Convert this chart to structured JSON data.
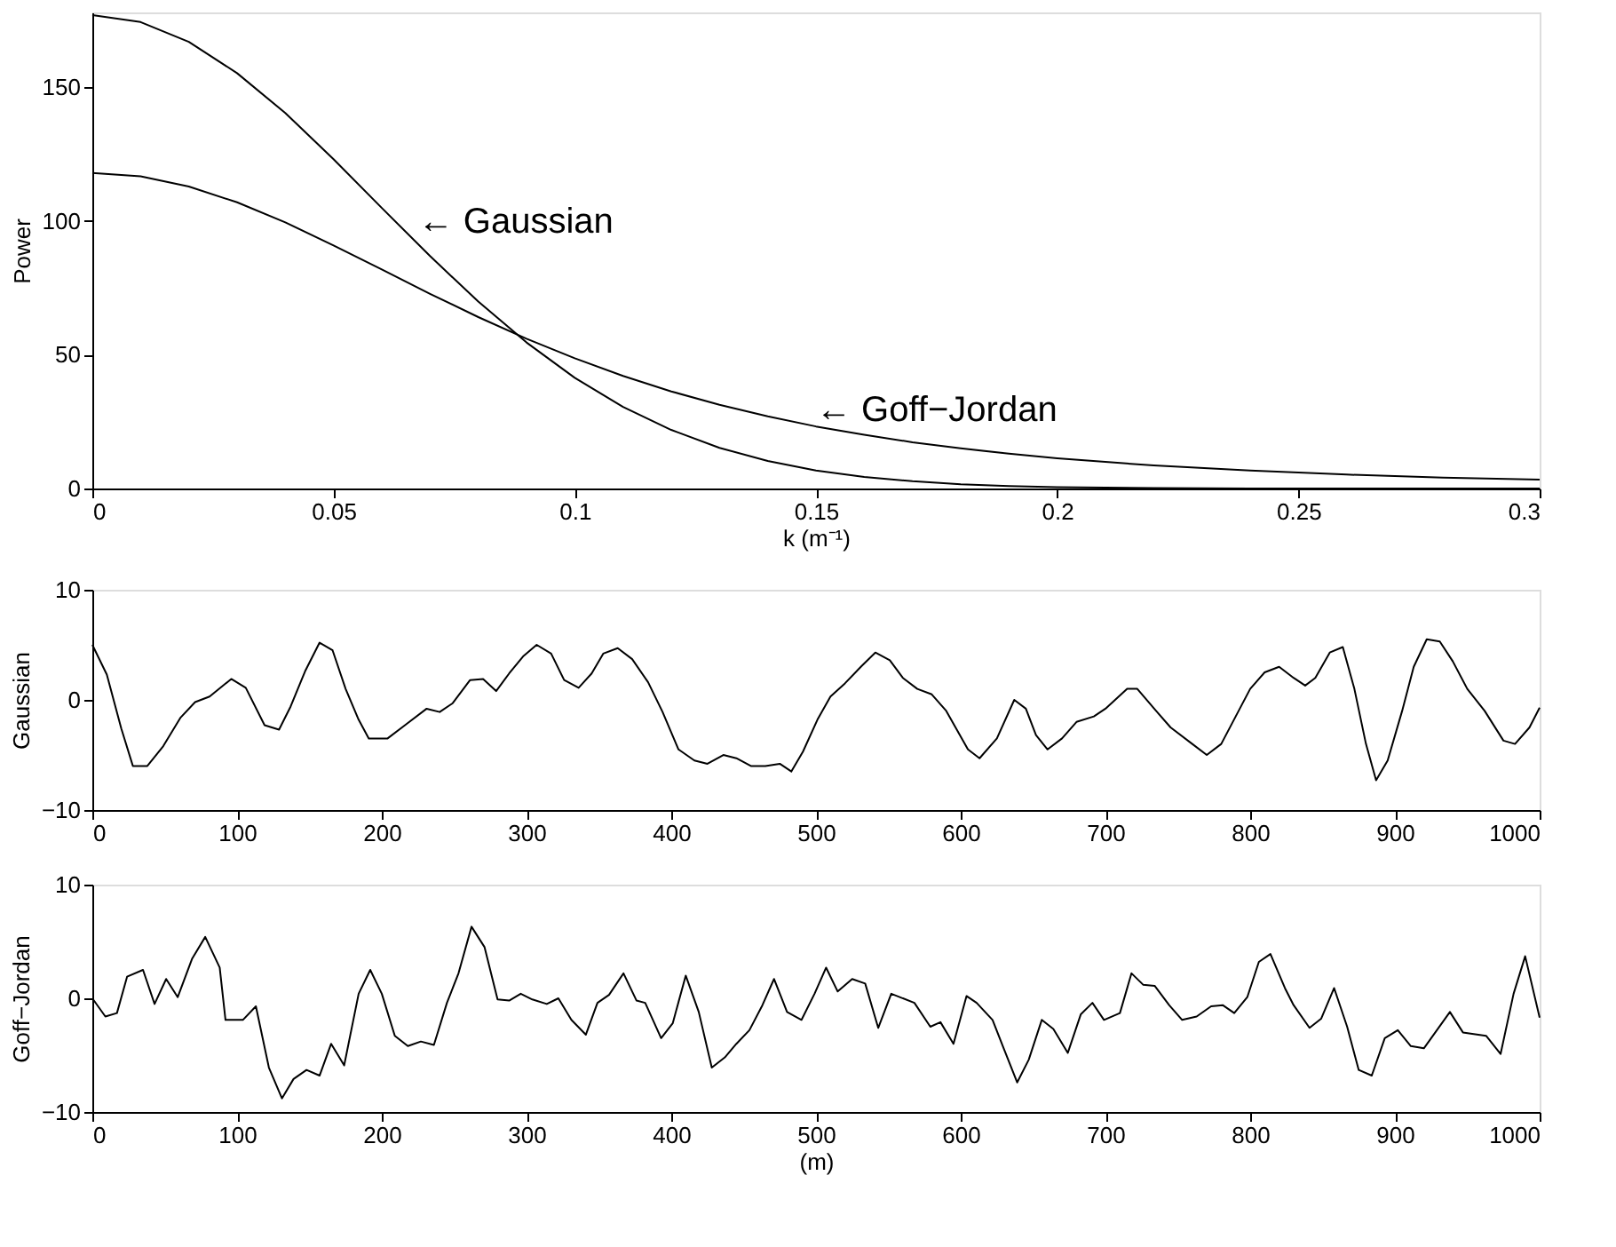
{
  "chart_data": [
    {
      "type": "line",
      "xlabel": "k (m⁻¹)",
      "ylabel": "Power",
      "xlim": [
        0,
        0.3
      ],
      "xticks": [
        0,
        0.05,
        0.1,
        0.15,
        0.2,
        0.25,
        0.3
      ],
      "ylim": [
        0,
        178
      ],
      "yticks": [
        0,
        50,
        100,
        150
      ],
      "x": [
        0,
        0.01,
        0.02,
        0.03,
        0.04,
        0.05,
        0.06,
        0.07,
        0.08,
        0.09,
        0.1,
        0.11,
        0.12,
        0.13,
        0.14,
        0.15,
        0.16,
        0.17,
        0.18,
        0.19,
        0.2,
        0.22,
        0.24,
        0.26,
        0.28,
        0.3
      ],
      "series": [
        {
          "color": "#000000",
          "values": [
            177,
            174.4,
            167,
            155.3,
            140.4,
            123.1,
            104.9,
            86.9,
            69.9,
            54.6,
            41.4,
            30.5,
            21.9,
            15.2,
            10.3,
            6.7,
            4.3,
            2.7,
            1.6,
            0.9,
            0.5,
            0.2,
            0,
            0,
            0,
            0
          ]
        },
        {
          "color": "#000000",
          "values": [
            118,
            116.7,
            112.9,
            107,
            99.5,
            90.9,
            81.9,
            72.8,
            64.1,
            56,
            48.7,
            42.1,
            36.3,
            31.3,
            27,
            23.2,
            20.1,
            17.3,
            15,
            13,
            11.3,
            8.6,
            6.7,
            5.2,
            4.1,
            3.3
          ]
        }
      ],
      "annotations": [
        "← Gaussian",
        "← Goff−Jordan"
      ]
    },
    {
      "type": "line",
      "ylabel": "Gaussian",
      "xlim": [
        0,
        1000
      ],
      "xticks": [
        0,
        100,
        200,
        300,
        400,
        500,
        600,
        700,
        800,
        900,
        1000
      ],
      "ylim": [
        -10,
        10
      ],
      "yticks": [
        -10,
        0,
        10
      ],
      "series": [
        {
          "color": "#000000",
          "x": [
            0,
            10,
            20,
            28,
            38,
            49,
            61,
            71,
            81,
            96,
            106,
            119,
            129,
            137,
            147,
            157,
            166,
            175,
            184,
            191,
            204,
            216,
            231,
            240,
            249,
            261,
            270,
            279,
            288,
            298,
            307,
            317,
            326,
            336,
            345,
            353,
            363,
            373,
            384,
            394,
            405,
            416,
            425,
            436,
            445,
            455,
            465,
            475,
            483,
            491,
            501,
            510,
            520,
            531,
            541,
            551,
            560,
            570,
            580,
            590,
            605,
            613,
            625,
            637,
            645,
            652,
            660,
            670,
            680,
            692,
            700,
            715,
            722,
            735,
            745,
            760,
            770,
            780,
            790,
            800,
            810,
            820,
            830,
            838,
            845,
            855,
            864,
            872,
            880,
            887,
            895,
            905,
            913,
            922,
            931,
            940,
            950,
            962,
            975,
            983,
            993,
            1000
          ],
          "values": [
            5,
            2.3,
            -2.6,
            -6,
            -6,
            -4.2,
            -1.6,
            -0.2,
            0.3,
            1.9,
            1.1,
            -2.3,
            -2.7,
            -0.6,
            2.6,
            5.2,
            4.5,
            1,
            -1.8,
            -3.5,
            -3.5,
            -2.3,
            -0.8,
            -1.1,
            -0.3,
            1.8,
            1.9,
            0.8,
            2.4,
            4,
            5,
            4.2,
            1.8,
            1.1,
            2.4,
            4.2,
            4.7,
            3.7,
            1.6,
            -1.1,
            -4.5,
            -5.5,
            -5.8,
            -5,
            -5.3,
            -6,
            -6,
            -5.8,
            -6.5,
            -4.7,
            -1.8,
            0.3,
            1.5,
            3,
            4.3,
            3.6,
            2,
            1,
            0.5,
            -1,
            -4.5,
            -5.3,
            -3.5,
            0,
            -0.8,
            -3.2,
            -4.5,
            -3.5,
            -2,
            -1.5,
            -0.8,
            1,
            1,
            -1,
            -2.5,
            -4,
            -5,
            -4,
            -1.5,
            1,
            2.5,
            3,
            2,
            1.3,
            2,
            4.3,
            4.8,
            1,
            -4,
            -7.3,
            -5.5,
            -1,
            3,
            5.5,
            5.3,
            3.5,
            1,
            -1,
            -3.7,
            -4,
            -2.5,
            -0.7
          ]
        }
      ]
    },
    {
      "type": "line",
      "ylabel": "Goff−Jordan",
      "xlabel": "(m)",
      "xlim": [
        0,
        1000
      ],
      "xticks": [
        0,
        100,
        200,
        300,
        400,
        500,
        600,
        700,
        800,
        900,
        1000
      ],
      "ylim": [
        -10,
        10
      ],
      "yticks": [
        -10,
        0,
        10
      ],
      "series": [
        {
          "color": "#000000",
          "x": [
            0,
            9,
            17,
            24,
            35,
            43,
            51,
            59,
            69,
            78,
            88,
            92,
            104,
            113,
            122,
            131,
            139,
            148,
            157,
            165,
            174,
            184,
            192,
            200,
            209,
            218,
            227,
            236,
            245,
            253,
            262,
            271,
            280,
            288,
            296,
            304,
            314,
            322,
            331,
            341,
            349,
            357,
            367,
            376,
            382,
            393,
            401,
            410,
            419,
            428,
            437,
            445,
            454,
            463,
            471,
            480,
            490,
            499,
            507,
            515,
            525,
            534,
            543,
            552,
            568,
            579,
            586,
            595,
            604,
            611,
            622,
            630,
            639,
            647,
            656,
            664,
            674,
            683,
            691,
            699,
            710,
            718,
            726,
            734,
            744,
            753,
            763,
            773,
            781,
            789,
            798,
            806,
            814,
            824,
            830,
            841,
            849,
            858,
            867,
            875,
            884,
            893,
            902,
            911,
            920,
            929,
            938,
            947,
            963,
            973,
            982,
            990,
            1000
          ],
          "values": [
            0,
            -1.6,
            -1.3,
            1.9,
            2.5,
            -0.5,
            1.7,
            0.1,
            3.5,
            5.4,
            2.7,
            -1.9,
            -1.9,
            -0.7,
            -6.1,
            -8.8,
            -7.1,
            -6.3,
            -6.8,
            -4,
            -5.9,
            0.4,
            2.5,
            0.4,
            -3.3,
            -4.2,
            -3.8,
            -4.1,
            -0.4,
            2.2,
            6.3,
            4.5,
            -0.1,
            -0.2,
            0.4,
            -0.1,
            -0.5,
            0,
            -1.9,
            -3.2,
            -0.4,
            0.3,
            2.2,
            -0.2,
            -0.4,
            -3.5,
            -2.2,
            2,
            -1.2,
            -6.1,
            -5.2,
            -4,
            -2.8,
            -0.6,
            1.7,
            -1.2,
            -1.9,
            0.4,
            2.7,
            0.6,
            1.7,
            1.3,
            -2.6,
            0.4,
            -0.4,
            -2.5,
            -2.1,
            -4,
            0.2,
            -0.4,
            -1.9,
            -4.5,
            -7.4,
            -5.4,
            -1.9,
            -2.7,
            -4.8,
            -1.4,
            -0.4,
            -1.9,
            -1.3,
            2.2,
            1.2,
            1.1,
            -0.6,
            -1.9,
            -1.6,
            -0.7,
            -0.6,
            -1.3,
            0.1,
            3.2,
            3.9,
            0.9,
            -0.6,
            -2.6,
            -1.8,
            0.9,
            -2.5,
            -6.3,
            -6.8,
            -3.5,
            -2.8,
            -4.2,
            -4.4,
            -2.8,
            -1.2,
            -3,
            -3.3,
            -4.9,
            0.4,
            3.7,
            -1.7
          ]
        }
      ]
    }
  ]
}
